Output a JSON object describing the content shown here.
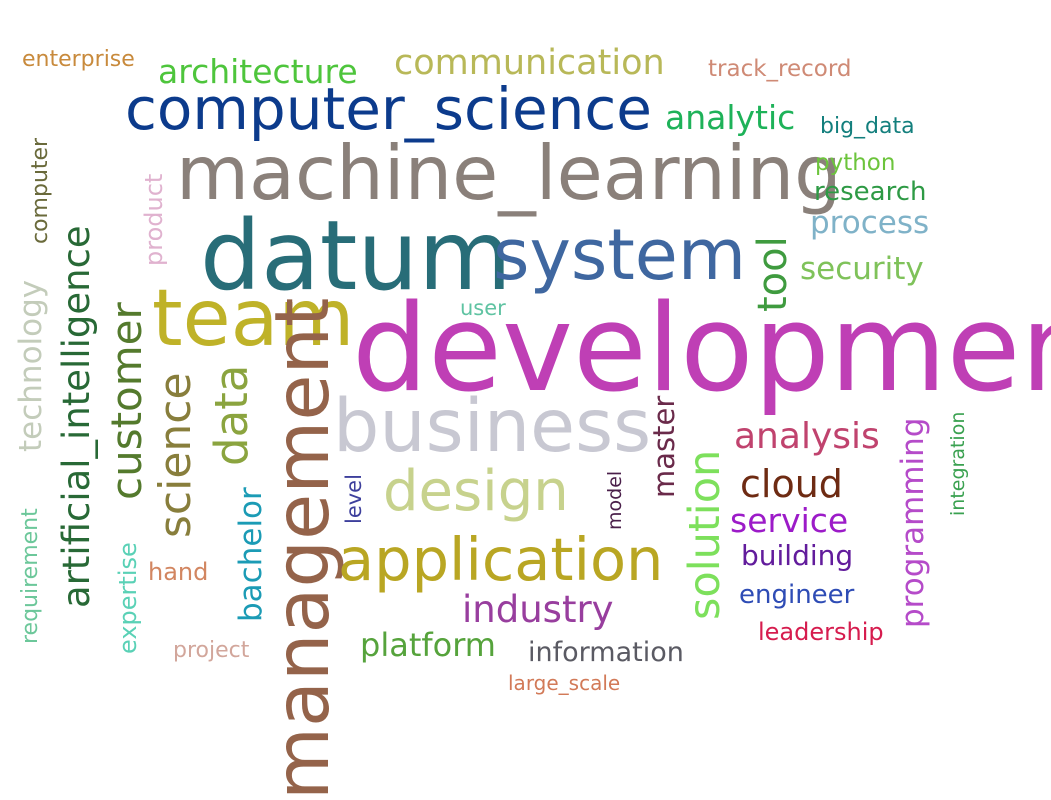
{
  "words": [
    {
      "text": "development",
      "color": "#bf3fb5",
      "rotated": false
    },
    {
      "text": "machine_learning",
      "color": "#8a807a",
      "rotated": false
    },
    {
      "text": "datum",
      "color": "#286d78",
      "rotated": false
    },
    {
      "text": "system",
      "color": "#3f67a0",
      "rotated": false
    },
    {
      "text": "computer_science",
      "color": "#0c3b8c",
      "rotated": false
    },
    {
      "text": "team",
      "color": "#bfb228",
      "rotated": false
    },
    {
      "text": "business",
      "color": "#c8c8d2",
      "rotated": false
    },
    {
      "text": "management",
      "color": "#94634a",
      "rotated": true
    },
    {
      "text": "application",
      "color": "#b9a623",
      "rotated": false
    },
    {
      "text": "design",
      "color": "#c7d28d",
      "rotated": false
    },
    {
      "text": "artificial_intelligence",
      "color": "#286936",
      "rotated": true
    },
    {
      "text": "customer",
      "color": "#547a2d",
      "rotated": true
    },
    {
      "text": "science",
      "color": "#887e3c",
      "rotated": true
    },
    {
      "text": "data",
      "color": "#8ba43f",
      "rotated": true
    },
    {
      "text": "communication",
      "color": "#b8b858",
      "rotated": false
    },
    {
      "text": "architecture",
      "color": "#4ec53c",
      "rotated": false
    },
    {
      "text": "analytic",
      "color": "#1eb259",
      "rotated": false
    },
    {
      "text": "analysis",
      "color": "#c0436e",
      "rotated": false
    },
    {
      "text": "cloud",
      "color": "#6e2b13",
      "rotated": false
    },
    {
      "text": "industry",
      "color": "#983e9e",
      "rotated": false
    },
    {
      "text": "solution",
      "color": "#7de05c",
      "rotated": true
    },
    {
      "text": "tool",
      "color": "#3f9b3f",
      "rotated": true
    },
    {
      "text": "service",
      "color": "#9c1bc8",
      "rotated": false
    },
    {
      "text": "security",
      "color": "#7fc25a",
      "rotated": false
    },
    {
      "text": "process",
      "color": "#7fb2c8",
      "rotated": false
    },
    {
      "text": "platform",
      "color": "#56a33c",
      "rotated": false
    },
    {
      "text": "technology",
      "color": "#c3ccba",
      "rotated": true
    },
    {
      "text": "programming",
      "color": "#b54bc9",
      "rotated": true
    },
    {
      "text": "building",
      "color": "#621c9c",
      "rotated": false
    },
    {
      "text": "engineer",
      "color": "#2e4cb5",
      "rotated": false
    },
    {
      "text": "information",
      "color": "#5a5a63",
      "rotated": false
    },
    {
      "text": "bachelor",
      "color": "#1b9bb5",
      "rotated": true
    },
    {
      "text": "master",
      "color": "#6a2a4a",
      "rotated": true
    },
    {
      "text": "leadership",
      "color": "#d61c4e",
      "rotated": false
    },
    {
      "text": "research",
      "color": "#2e9a45",
      "rotated": false
    },
    {
      "text": "python",
      "color": "#6cc43c",
      "rotated": false
    },
    {
      "text": "big_data",
      "color": "#137f7d",
      "rotated": false
    },
    {
      "text": "track_record",
      "color": "#cf8a75",
      "rotated": false
    },
    {
      "text": "enterprise",
      "color": "#c88a3c",
      "rotated": false
    },
    {
      "text": "computer",
      "color": "#6a6a3b",
      "rotated": true
    },
    {
      "text": "product",
      "color": "#e0b2cf",
      "rotated": true
    },
    {
      "text": "hand",
      "color": "#d28661",
      "rotated": false
    },
    {
      "text": "expertise",
      "color": "#5ad1b6",
      "rotated": true
    },
    {
      "text": "requirement",
      "color": "#6cc79a",
      "rotated": true
    },
    {
      "text": "project",
      "color": "#d2a69b",
      "rotated": false
    },
    {
      "text": "large_scale",
      "color": "#d27a58",
      "rotated": false
    },
    {
      "text": "level",
      "color": "#3d3f9c",
      "rotated": true
    },
    {
      "text": "model",
      "color": "#4a1f4a",
      "rotated": true
    },
    {
      "text": "integration",
      "color": "#3aa150",
      "rotated": true
    },
    {
      "text": "user",
      "color": "#5fc3a2",
      "rotated": false
    }
  ]
}
